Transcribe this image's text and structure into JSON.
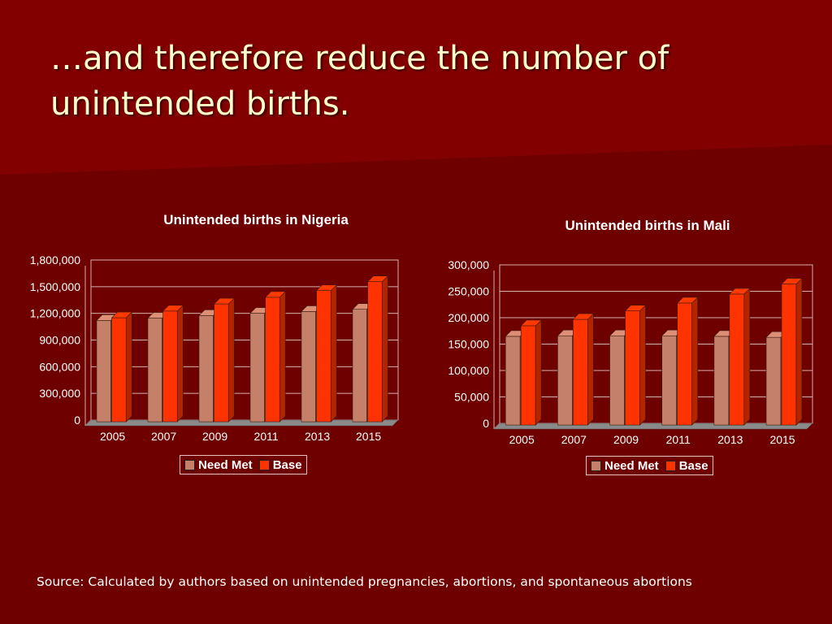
{
  "slide": {
    "title": "…and therefore reduce the number of unintended births.",
    "source": "Source: Calculated by authors based on unintended pregnancies, abortions, and spontaneous abortions"
  },
  "colors": {
    "background": "#6e0000",
    "title_text": "#ffffcc",
    "need_met": "#c48068",
    "base": "#ff3300"
  },
  "chart_data": [
    {
      "type": "bar",
      "title": "Unintended births in Nigeria",
      "categories": [
        "2005",
        "2007",
        "2009",
        "2011",
        "2013",
        "2015"
      ],
      "series": [
        {
          "name": "Need Met",
          "values": [
            1140000,
            1165000,
            1195000,
            1220000,
            1240000,
            1265000
          ]
        },
        {
          "name": "Base",
          "values": [
            1170000,
            1245000,
            1325000,
            1400000,
            1475000,
            1575000
          ]
        }
      ],
      "ylim": [
        0,
        1800000
      ],
      "yticks": [
        0,
        300000,
        600000,
        900000,
        1200000,
        1500000,
        1800000
      ],
      "ytick_labels": [
        "0",
        "300,000",
        "600,000",
        "900,000",
        "1,200,000",
        "1,500,000",
        "1,800,000"
      ],
      "grid": true,
      "legend": "bottom"
    },
    {
      "type": "bar",
      "title": "Unintended births in Mali",
      "categories": [
        "2005",
        "2007",
        "2009",
        "2011",
        "2013",
        "2015"
      ],
      "series": [
        {
          "name": "Need Met",
          "values": [
            168000,
            169000,
            169000,
            169000,
            168000,
            166000
          ]
        },
        {
          "name": "Base",
          "values": [
            188000,
            200000,
            216000,
            231000,
            248000,
            267000
          ]
        }
      ],
      "ylim": [
        0,
        300000
      ],
      "yticks": [
        0,
        50000,
        100000,
        150000,
        200000,
        250000,
        300000
      ],
      "ytick_labels": [
        "0",
        "50,000",
        "100,000",
        "150,000",
        "200,000",
        "250,000",
        "300,000"
      ],
      "grid": true,
      "legend": "bottom"
    }
  ]
}
